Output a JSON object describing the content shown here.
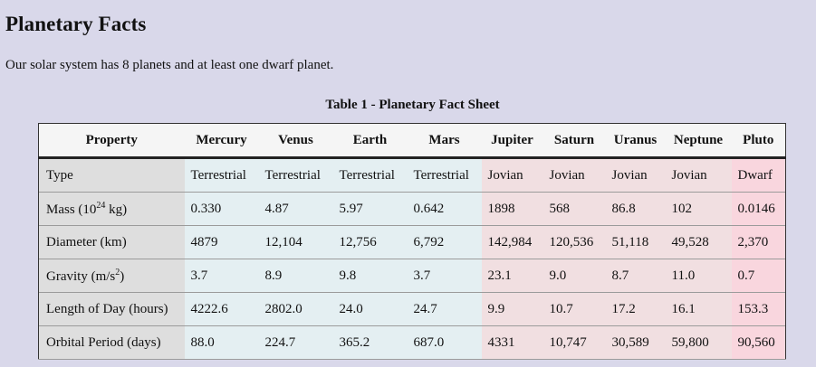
{
  "page": {
    "title": "Planetary Facts",
    "intro": "Our solar system has 8 planets and at least one dwarf planet."
  },
  "table": {
    "caption": "Table 1 - Planetary Fact Sheet",
    "headers": [
      "Property",
      "Mercury",
      "Venus",
      "Earth",
      "Mars",
      "Jupiter",
      "Saturn",
      "Uranus",
      "Neptune",
      "Pluto"
    ],
    "rows": [
      {
        "label": "Type",
        "values": [
          "Terrestrial",
          "Terrestrial",
          "Terrestrial",
          "Terrestrial",
          "Jovian",
          "Jovian",
          "Jovian",
          "Jovian",
          "Dwarf"
        ]
      },
      {
        "label_prefix": "Mass (10",
        "label_sup": "24",
        "label_suffix": " kg)",
        "values": [
          "0.330",
          "4.87",
          "5.97",
          "0.642",
          "1898",
          "568",
          "86.8",
          "102",
          "0.0146"
        ]
      },
      {
        "label": "Diameter (km)",
        "values": [
          "4879",
          "12,104",
          "12,756",
          "6,792",
          "142,984",
          "120,536",
          "51,118",
          "49,528",
          "2,370"
        ]
      },
      {
        "label_prefix": "Gravity (m/s",
        "label_sup": "2",
        "label_suffix": ")",
        "values": [
          "3.7",
          "8.9",
          "9.8",
          "3.7",
          "23.1",
          "9.0",
          "8.7",
          "11.0",
          "0.7"
        ]
      },
      {
        "label": "Length of Day (hours)",
        "values": [
          "4222.6",
          "2802.0",
          "24.0",
          "24.7",
          "9.9",
          "10.7",
          "17.2",
          "16.1",
          "153.3"
        ]
      },
      {
        "label": "Orbital Period (days)",
        "values": [
          "88.0",
          "224.7",
          "365.2",
          "687.0",
          "4331",
          "10,747",
          "30,589",
          "59,800",
          "90,560"
        ]
      }
    ]
  },
  "colors": {
    "page_background": "#d9d8ea",
    "header_background": "#f5f5f5",
    "property_column": "#dedede",
    "terrestrial": "#e4eff2",
    "jovian": "#f1dfe1",
    "dwarf": "#f9d6de"
  }
}
